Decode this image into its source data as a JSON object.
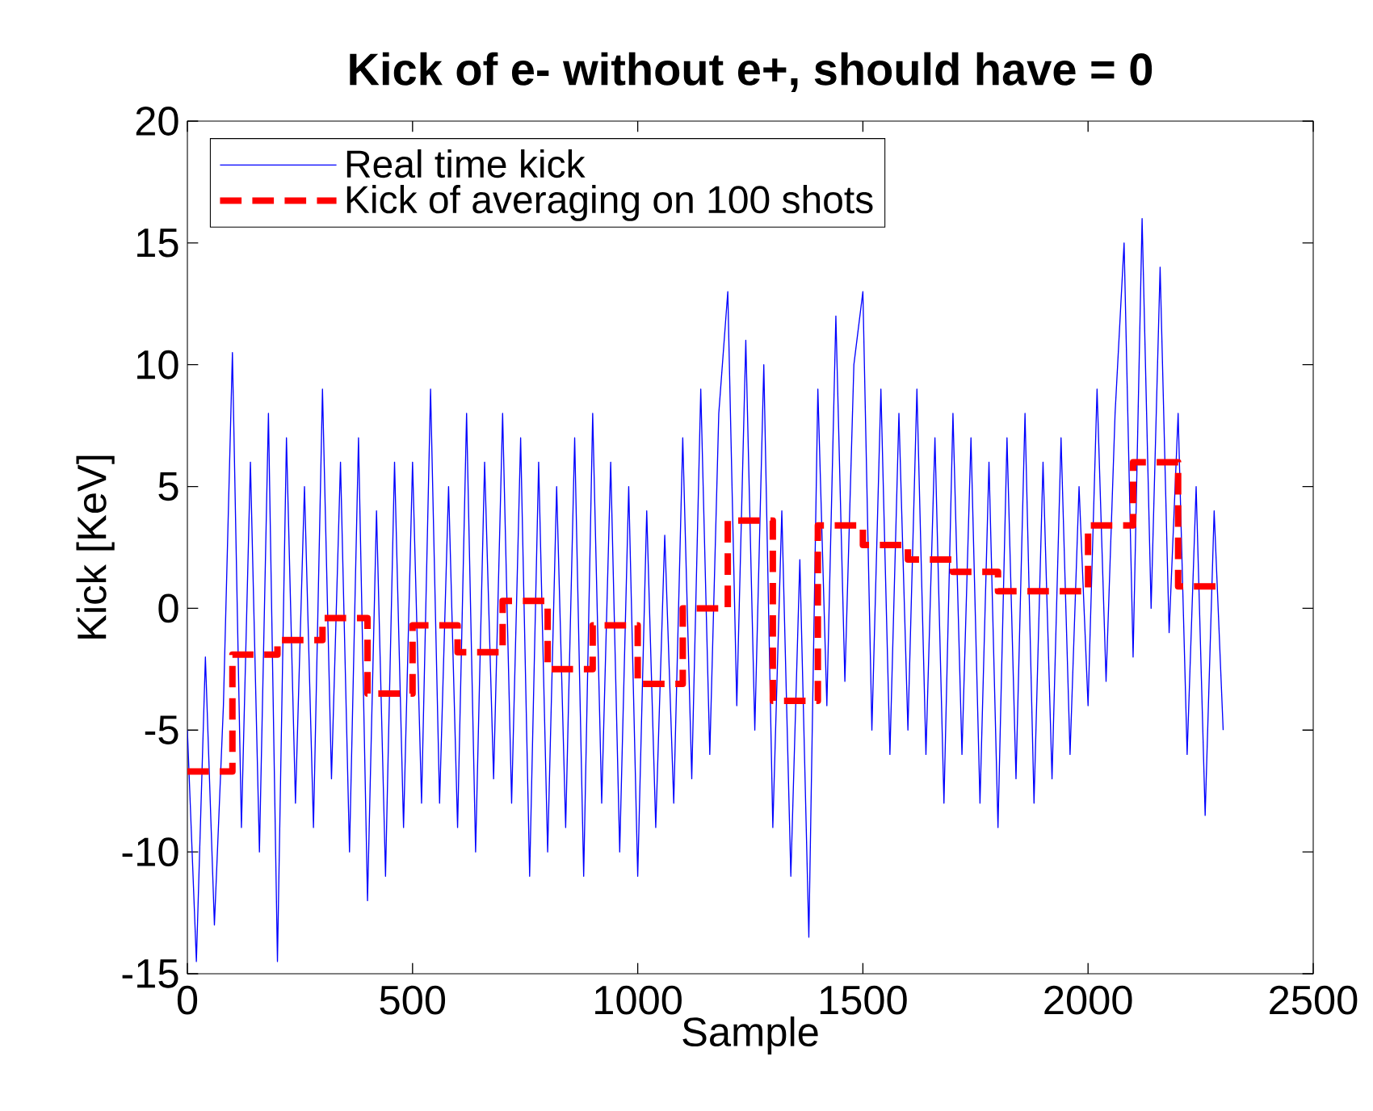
{
  "chart_data": {
    "type": "line",
    "title": "Kick of e- without e+, should have = 0",
    "xlabel": "Sample",
    "ylabel": "Kick [KeV]",
    "xlim": [
      0,
      2500
    ],
    "ylim": [
      -15,
      20
    ],
    "xticks": [
      0,
      500,
      1000,
      1500,
      2000,
      2500
    ],
    "yticks": [
      -15,
      -10,
      -5,
      0,
      5,
      10,
      15,
      20
    ],
    "grid": false,
    "legend": "top left",
    "marker": "none",
    "series": [
      {
        "name": "Real time kick",
        "color": "#0000ff",
        "line_style": "solid",
        "x": [
          0,
          20,
          40,
          60,
          80,
          100,
          120,
          140,
          160,
          180,
          200,
          220,
          240,
          260,
          280,
          300,
          320,
          340,
          360,
          380,
          400,
          420,
          440,
          460,
          480,
          500,
          520,
          540,
          560,
          580,
          600,
          620,
          640,
          660,
          680,
          700,
          720,
          740,
          760,
          780,
          800,
          820,
          840,
          860,
          880,
          900,
          920,
          940,
          960,
          980,
          1000,
          1020,
          1040,
          1060,
          1080,
          1100,
          1120,
          1140,
          1160,
          1180,
          1200,
          1220,
          1240,
          1260,
          1280,
          1300,
          1320,
          1340,
          1360,
          1380,
          1400,
          1420,
          1440,
          1460,
          1480,
          1500,
          1520,
          1540,
          1560,
          1580,
          1600,
          1620,
          1640,
          1660,
          1680,
          1700,
          1720,
          1740,
          1760,
          1780,
          1800,
          1820,
          1840,
          1860,
          1880,
          1900,
          1920,
          1940,
          1960,
          1980,
          2000,
          2020,
          2040,
          2060,
          2080,
          2100,
          2120,
          2140,
          2160,
          2180,
          2200,
          2220,
          2240,
          2260,
          2280,
          2300
        ],
        "values": [
          -5,
          -14.5,
          -2,
          -13,
          -4,
          10.5,
          -9,
          6,
          -10,
          8,
          -14.5,
          7,
          -8,
          5,
          -9,
          9,
          -7,
          6,
          -10,
          7,
          -12,
          4,
          -11,
          6,
          -9,
          6,
          -8,
          9,
          -8,
          5,
          -9,
          8,
          -10,
          6,
          -7,
          8,
          -8,
          7,
          -11,
          6,
          -10,
          5,
          -9,
          7,
          -11,
          8,
          -8,
          6,
          -10,
          5,
          -11,
          4,
          -9,
          3,
          -8,
          7,
          -7,
          9,
          -6,
          8,
          13,
          -4,
          11,
          -5,
          10,
          -9,
          4,
          -11,
          2,
          -13.5,
          9,
          -4,
          12,
          -3,
          10,
          13,
          -5,
          9,
          -6,
          8,
          -5,
          9,
          -6,
          7,
          -8,
          8,
          -6,
          7,
          -8,
          6,
          -9,
          7,
          -7,
          8,
          -8,
          6,
          -7,
          7,
          -6,
          5,
          -4,
          9,
          -3,
          8,
          15,
          -2,
          16,
          0,
          14,
          -1,
          8,
          -6,
          5,
          -8.5,
          4,
          -5
        ]
      },
      {
        "name": "Kick of averaging on 100 shots",
        "type": "step",
        "color": "#ff0000",
        "line_style": "dashed",
        "x": [
          0,
          100,
          200,
          300,
          400,
          500,
          600,
          700,
          800,
          900,
          1000,
          1100,
          1200,
          1300,
          1400,
          1500,
          1600,
          1700,
          1800,
          1900,
          2000,
          2100,
          2200,
          2300
        ],
        "values": [
          -6.7,
          -1.9,
          -1.3,
          -0.4,
          -3.5,
          -0.7,
          -1.8,
          0.3,
          -2.5,
          -0.7,
          -3.1,
          0.0,
          3.6,
          -3.8,
          3.4,
          2.6,
          2.0,
          1.5,
          0.7,
          0.7,
          3.4,
          6.0,
          0.9,
          0.9
        ]
      }
    ]
  }
}
